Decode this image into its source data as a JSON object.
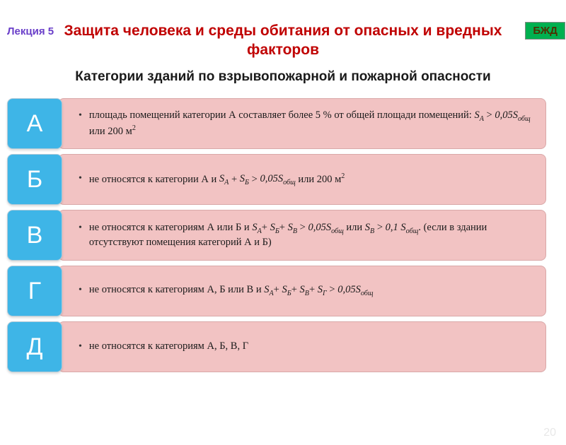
{
  "header": {
    "lecture": "Лекция 5",
    "bjd": "БЖД"
  },
  "titles": {
    "main": "Защита человека и среды обитания от опасных и вредных факторов",
    "sub": "Категории зданий по взрывопожарной и пожарной опасности"
  },
  "categories": [
    {
      "label": "А",
      "desc_html": "площадь помещений категории А составляет более 5 % от общей площади помещений: <span class='italic'>S<sub>А</sub></span> > <span class='italic'>0,05S<sub>общ</sub></span> или 200 м<sup>2</sup>"
    },
    {
      "label": "Б",
      "desc_html": "не относятся к категории А и <span class='italic'>S<sub>А</sub></span> + <span class='italic'>S<sub>Б</sub></span> > <span class='italic'>0,05S<sub>общ</sub></span> или 200 м<sup>2</sup>"
    },
    {
      "label": "В",
      "desc_html": "не относятся к категориям А или Б и <span class='italic'>S<sub>А</sub></span>+ <span class='italic'>S<sub>Б</sub></span>+ <span class='italic'>S<sub>В</sub></span> > <span class='italic'>0,05S<sub>общ</sub></span> или <span class='italic'>S<sub>В</sub></span> > <span class='italic'>0,1 S<sub>общ</sub></span>. (если в здании отсутствуют помещения категорий А и Б)"
    },
    {
      "label": "Г",
      "desc_html": "не относятся к категориям А, Б или В и <span class='italic'>S<sub>А</sub></span>+ <span class='italic'>S<sub>Б</sub></span>+ <span class='italic'>S<sub>В</sub></span>+ <span class='italic'>S<sub>Г</sub></span> > <span class='italic'>0,05S<sub>общ</sub></span>"
    },
    {
      "label": "Д",
      "desc_html": "не относятся к категориям А, Б, В, Г"
    }
  ],
  "page_number": "20",
  "style": {
    "label_bg": "#3eb5e7",
    "label_fg": "#ffffff",
    "desc_bg": "#f2c3c3",
    "title_color": "#c00000",
    "lecture_color": "#6a3fc9",
    "bjd_bg": "#00b050"
  }
}
